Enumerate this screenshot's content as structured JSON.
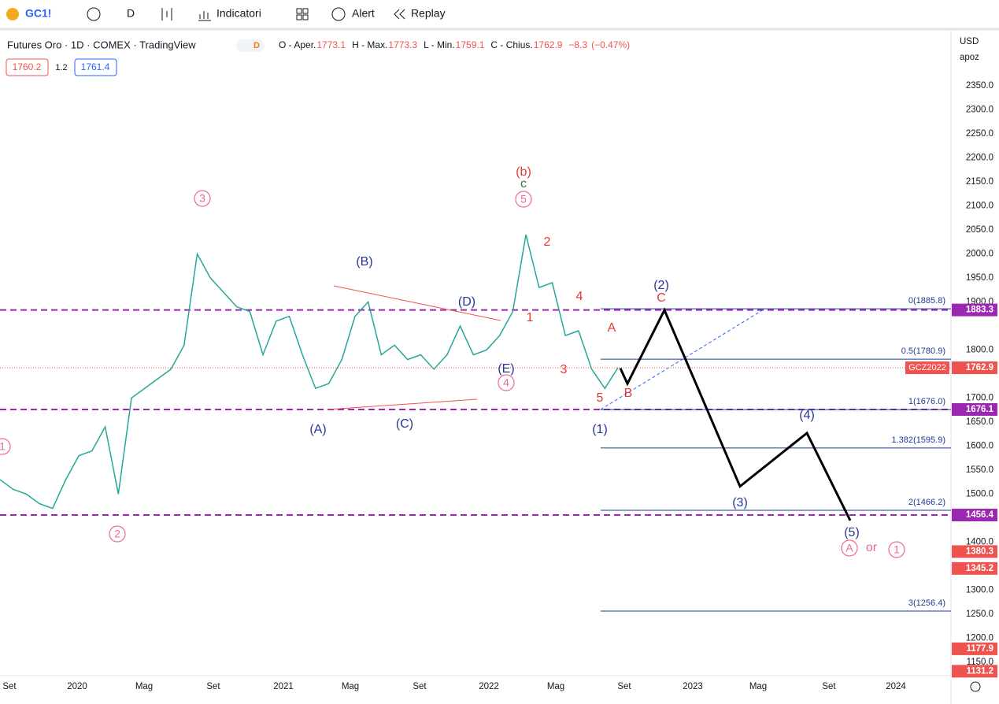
{
  "ui": {
    "symbol": "GC1!",
    "interval": "D",
    "indicators": "Indicatori",
    "alert": "Alert",
    "replay": "Replay",
    "legend_title": "Futures Oro · 1D · COMEX · TradingView",
    "legend_flag": "D",
    "ohlc": [
      {
        "label": "O - Aper.",
        "value": "1773.1"
      },
      {
        "label": "H - Max.",
        "value": "1773.3"
      },
      {
        "label": "L - Min.",
        "value": "1759.1"
      },
      {
        "label": "C - Chius.",
        "value": "1762.9"
      }
    ],
    "change": "−8.3",
    "change_pct": "(−0.47%)",
    "bid": "1760.2",
    "spread": "1.2",
    "ask": "1761.4",
    "currency": "USD",
    "scale_mode": "apoz"
  },
  "chart_data": {
    "type": "line",
    "color": "#26a69a",
    "values": [
      1530,
      1510,
      1500,
      1480,
      1470,
      1530,
      1580,
      1590,
      1640,
      1500,
      1700,
      1720,
      1740,
      1760,
      1810,
      2000,
      1950,
      1920,
      1890,
      1880,
      1790,
      1860,
      1870,
      1790,
      1720,
      1730,
      1780,
      1870,
      1900,
      1790,
      1810,
      1780,
      1790,
      1760,
      1790,
      1850,
      1790,
      1800,
      1830,
      1880,
      2040,
      1930,
      1940,
      1830,
      1840,
      1760,
      1720,
      1763
    ],
    "ylim": [
      1122,
      2463
    ],
    "yticks": [
      {
        "value": 2350,
        "label": "2350.0"
      },
      {
        "value": 2300,
        "label": "2300.0"
      },
      {
        "value": 2250,
        "label": "2250.0"
      },
      {
        "value": 2200,
        "label": "2200.0"
      },
      {
        "value": 2150,
        "label": "2150.0"
      },
      {
        "value": 2100,
        "label": "2100.0"
      },
      {
        "value": 2050,
        "label": "2050.0"
      },
      {
        "value": 2000,
        "label": "2000.0"
      },
      {
        "value": 1950,
        "label": "1950.0"
      },
      {
        "value": 1900,
        "label": "1900.0"
      },
      {
        "value": 1800,
        "label": "1800.0"
      },
      {
        "value": 1700,
        "label": "1700.0"
      },
      {
        "value": 1650,
        "label": "1650.0"
      },
      {
        "value": 1600,
        "label": "1600.0"
      },
      {
        "value": 1550,
        "label": "1550.0"
      },
      {
        "value": 1500,
        "label": "1500.0"
      },
      {
        "value": 1400,
        "label": "1400.0"
      },
      {
        "value": 1300,
        "label": "1300.0"
      },
      {
        "value": 1250,
        "label": "1250.0"
      },
      {
        "value": 1200,
        "label": "1200.0"
      },
      {
        "value": 1150,
        "label": "1150.0"
      }
    ],
    "xticks": [
      "Set",
      "2020",
      "Mag",
      "Set",
      "2021",
      "Mag",
      "Set",
      "2022",
      "Mag",
      "Set",
      "2023",
      "Mag",
      "Set",
      "2024"
    ],
    "levels": [
      1883.3,
      1676.1,
      1456.4
    ],
    "level_color": "#9c27b0",
    "fib": [
      {
        "value": 1885.8,
        "label": "0(1885.8)"
      },
      {
        "value": 1780.9,
        "label": "0.5(1780.9)"
      },
      {
        "value": 1676.0,
        "label": "1(1676.0)"
      },
      {
        "value": 1595.9,
        "label": "1.382(1595.9)"
      },
      {
        "value": 1466.2,
        "label": "2(1466.2)"
      },
      {
        "value": 1256.4,
        "label": "3(1256.4)"
      }
    ],
    "fib_color": "#1e3a9a",
    "projection": [
      1762,
      1730,
      1883,
      1516,
      1627,
      1445
    ],
    "badges": [
      {
        "value": 1883.3,
        "color": "#9c27b0"
      },
      {
        "value": 1762.9,
        "color": "#ef5350"
      },
      {
        "value": 1676.1,
        "color": "#9c27b0"
      },
      {
        "value": 1456.4,
        "color": "#9c27b0"
      },
      {
        "value": 1380.3,
        "color": "#ef5350"
      },
      {
        "value": 1345.2,
        "color": "#ef5350"
      },
      {
        "value": 1177.9,
        "color": "#ef5350"
      },
      {
        "value": 1131.2,
        "color": "#ef5350"
      }
    ],
    "contract": "GCZ2022",
    "annotations": [
      {
        "text": "(b)",
        "color": "#e53935"
      },
      {
        "text": "c",
        "color": "#2e7d32"
      },
      {
        "text": "5",
        "color": "#ec6a8c",
        "circled": true
      },
      {
        "text": "3",
        "color": "#ec6a8c",
        "circled": true
      },
      {
        "text": "1",
        "color": "#ec6a8c",
        "circled": true
      },
      {
        "text": "2",
        "color": "#ec6a8c",
        "circled": true
      },
      {
        "text": "(B)",
        "color": "#283593"
      },
      {
        "text": "(D)",
        "color": "#283593"
      },
      {
        "text": "(E)",
        "color": "#283593"
      },
      {
        "text": "4",
        "color": "#ec6a8c",
        "circled": true
      },
      {
        "text": "(A)",
        "color": "#283593"
      },
      {
        "text": "(C)",
        "color": "#283593"
      },
      {
        "text": "2",
        "color": "#e53935"
      },
      {
        "text": "1",
        "color": "#e53935"
      },
      {
        "text": "4",
        "color": "#e53935"
      },
      {
        "text": "3",
        "color": "#e53935"
      },
      {
        "text": "5",
        "color": "#e53935"
      },
      {
        "text": "(1)",
        "color": "#283593"
      },
      {
        "text": "A",
        "color": "#e53935"
      },
      {
        "text": "B",
        "color": "#e53935"
      },
      {
        "text": "C",
        "color": "#e53935"
      },
      {
        "text": "(2)",
        "color": "#283593"
      },
      {
        "text": "(3)",
        "color": "#283593"
      },
      {
        "text": "(4)",
        "color": "#283593"
      },
      {
        "text": "(5)",
        "color": "#283593"
      },
      {
        "text": "A",
        "color": "#ec6a8c",
        "circled": true
      },
      {
        "text": "or",
        "color": "#ec6a8c"
      },
      {
        "text": "1",
        "color": "#ec6a8c",
        "circled": true
      }
    ]
  }
}
